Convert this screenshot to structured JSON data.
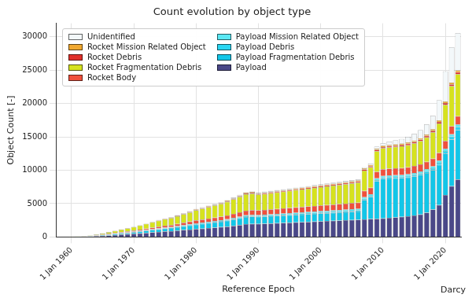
{
  "chart_data": {
    "type": "bar",
    "title": "Count evolution by object type",
    "x_label": "Reference Epoch",
    "y_label": "Object Count [-]",
    "annotations": [
      "Darcy"
    ],
    "categories": [
      null,
      null,
      "1 Jan 1960",
      null,
      null,
      null,
      null,
      null,
      null,
      null,
      null,
      null,
      "1 Jan 1970",
      null,
      null,
      null,
      null,
      null,
      null,
      null,
      null,
      null,
      "1 Jan 1980",
      null,
      null,
      null,
      null,
      null,
      null,
      null,
      null,
      null,
      "1 Jan 1990",
      null,
      null,
      null,
      null,
      null,
      null,
      null,
      null,
      null,
      "1 Jan 2000",
      null,
      null,
      null,
      null,
      null,
      null,
      null,
      null,
      null,
      "1 Jan 2010",
      null,
      null,
      null,
      null,
      null,
      null,
      null,
      null,
      null,
      "1 Jan 2020",
      null,
      null
    ],
    "series": [
      {
        "name": "Payload",
        "color": "#4a4888",
        "values": [
          6,
          12,
          20,
          35,
          60,
          90,
          130,
          180,
          240,
          300,
          360,
          420,
          480,
          550,
          620,
          690,
          760,
          830,
          880,
          960,
          1040,
          1120,
          1200,
          1270,
          1340,
          1410,
          1480,
          1560,
          1680,
          1800,
          1920,
          1960,
          1950,
          1990,
          2030,
          2070,
          2110,
          2150,
          2190,
          2230,
          2270,
          2310,
          2350,
          2390,
          2430,
          2470,
          2510,
          2550,
          2590,
          2640,
          2690,
          2740,
          2800,
          2870,
          2940,
          3020,
          3110,
          3220,
          3380,
          3650,
          4100,
          4800,
          6300,
          7600,
          8600
        ]
      },
      {
        "name": "Payload Fragmentation Debris",
        "color": "#12c6e8",
        "values": [
          0,
          0,
          2,
          5,
          15,
          30,
          50,
          80,
          110,
          140,
          170,
          200,
          230,
          270,
          310,
          350,
          390,
          430,
          460,
          510,
          560,
          610,
          660,
          700,
          740,
          780,
          820,
          870,
          940,
          1000,
          1060,
          1080,
          1060,
          1070,
          1080,
          1090,
          1100,
          1110,
          1120,
          1130,
          1140,
          1150,
          1160,
          1170,
          1180,
          1190,
          1200,
          1210,
          1220,
          2900,
          3300,
          5600,
          5900,
          5900,
          5850,
          5800,
          5800,
          5850,
          5900,
          5950,
          5900,
          6000,
          6200,
          7000,
          7400
        ]
      },
      {
        "name": "Payload Debris",
        "color": "#2ad6f2",
        "values": [
          0,
          0,
          1,
          2,
          4,
          6,
          10,
          15,
          20,
          25,
          30,
          35,
          40,
          45,
          50,
          55,
          60,
          65,
          70,
          75,
          80,
          85,
          90,
          95,
          100,
          105,
          110,
          115,
          120,
          125,
          130,
          135,
          135,
          138,
          141,
          144,
          147,
          150,
          153,
          156,
          159,
          162,
          165,
          168,
          171,
          174,
          177,
          180,
          183,
          186,
          190,
          195,
          200,
          205,
          210,
          215,
          220,
          230,
          240,
          260,
          290,
          330,
          380,
          430,
          480
        ]
      },
      {
        "name": "Payload Mission Related Object",
        "color": "#5ae8f4",
        "values": [
          1,
          2,
          3,
          5,
          8,
          12,
          16,
          22,
          28,
          35,
          42,
          50,
          55,
          60,
          65,
          70,
          75,
          80,
          85,
          90,
          95,
          100,
          105,
          110,
          115,
          120,
          125,
          130,
          135,
          140,
          145,
          150,
          150,
          155,
          160,
          165,
          170,
          175,
          180,
          185,
          190,
          195,
          200,
          205,
          210,
          215,
          220,
          225,
          230,
          235,
          240,
          245,
          250,
          255,
          260,
          265,
          270,
          280,
          290,
          300,
          310,
          320,
          340,
          360,
          380
        ]
      },
      {
        "name": "Rocket Body",
        "color": "#f0503c",
        "values": [
          3,
          5,
          8,
          12,
          20,
          30,
          45,
          60,
          80,
          100,
          120,
          140,
          160,
          185,
          210,
          235,
          260,
          285,
          305,
          335,
          365,
          395,
          425,
          450,
          475,
          500,
          525,
          555,
          595,
          635,
          675,
          685,
          690,
          705,
          720,
          735,
          750,
          765,
          780,
          795,
          810,
          825,
          840,
          855,
          870,
          885,
          900,
          915,
          930,
          945,
          960,
          975,
          990,
          1005,
          1020,
          1035,
          1050,
          1065,
          1080,
          1100,
          1120,
          1140,
          1170,
          1200,
          1230
        ]
      },
      {
        "name": "Rocket Fragmentation Debris",
        "color": "#d6e21e",
        "values": [
          0,
          0,
          4,
          15,
          35,
          70,
          110,
          170,
          240,
          310,
          380,
          450,
          520,
          610,
          700,
          790,
          880,
          970,
          1040,
          1150,
          1260,
          1370,
          1500,
          1600,
          1700,
          1800,
          1900,
          2020,
          2170,
          2320,
          2470,
          2500,
          2350,
          2390,
          2430,
          2470,
          2510,
          2550,
          2590,
          2630,
          2670,
          2710,
          2750,
          2790,
          2830,
          2870,
          2910,
          2950,
          2990,
          3030,
          3070,
          3110,
          3150,
          3180,
          3210,
          3250,
          3300,
          3380,
          3480,
          3650,
          3950,
          4400,
          5400,
          6000,
          6300
        ]
      },
      {
        "name": "Rocket Debris",
        "color": "#e0302a",
        "values": [
          0,
          0,
          1,
          2,
          3,
          5,
          8,
          10,
          14,
          18,
          22,
          25,
          30,
          35,
          40,
          45,
          50,
          55,
          60,
          65,
          70,
          75,
          80,
          85,
          90,
          95,
          100,
          105,
          110,
          115,
          120,
          125,
          125,
          128,
          131,
          134,
          137,
          140,
          143,
          146,
          149,
          152,
          155,
          158,
          161,
          164,
          167,
          170,
          173,
          176,
          180,
          185,
          190,
          195,
          200,
          205,
          210,
          215,
          220,
          230,
          240,
          250,
          260,
          270,
          280
        ]
      },
      {
        "name": "Rocket Mission Related Object",
        "color": "#f0a830",
        "values": [
          0,
          1,
          1,
          3,
          4,
          6,
          8,
          10,
          12,
          15,
          18,
          20,
          25,
          30,
          35,
          40,
          45,
          50,
          55,
          60,
          65,
          70,
          75,
          80,
          85,
          90,
          95,
          100,
          105,
          110,
          115,
          120,
          120,
          123,
          126,
          129,
          132,
          135,
          138,
          141,
          144,
          147,
          150,
          153,
          156,
          159,
          162,
          165,
          168,
          171,
          175,
          180,
          185,
          190,
          195,
          200,
          205,
          210,
          215,
          220,
          230,
          240,
          250,
          260,
          270
        ]
      },
      {
        "name": "Unidentified",
        "color": "#f3f8fa",
        "values": [
          0,
          0,
          0,
          1,
          1,
          1,
          3,
          3,
          6,
          7,
          8,
          10,
          10,
          15,
          20,
          25,
          30,
          35,
          40,
          45,
          50,
          55,
          60,
          62,
          64,
          66,
          68,
          70,
          72,
          74,
          76,
          78,
          80,
          82,
          84,
          86,
          88,
          90,
          92,
          94,
          96,
          98,
          100,
          105,
          110,
          115,
          120,
          130,
          140,
          160,
          200,
          300,
          400,
          500,
          600,
          700,
          850,
          1000,
          1200,
          1500,
          2000,
          3000,
          4500,
          5300,
          5600
        ]
      }
    ],
    "ylim": [
      0,
      32000
    ],
    "yticks": [
      0,
      5000,
      10000,
      15000,
      20000,
      25000,
      30000
    ],
    "stacked": true,
    "grid": true,
    "legend": "upper left"
  }
}
